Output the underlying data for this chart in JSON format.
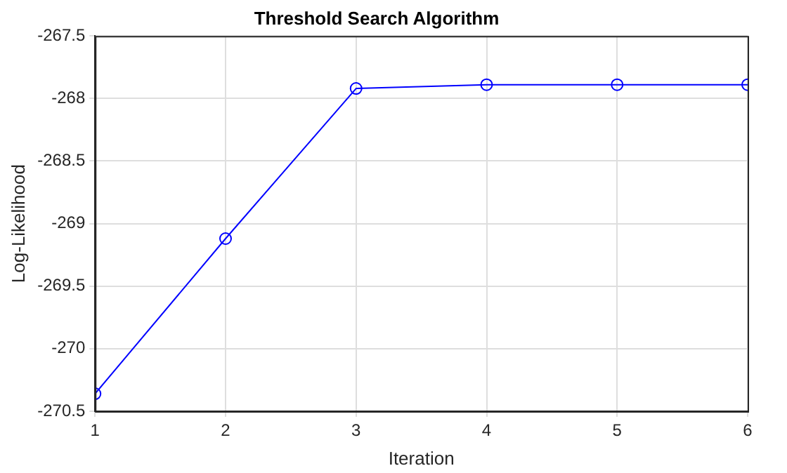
{
  "chart_data": {
    "type": "line",
    "title": "Threshold Search Algorithm",
    "xlabel": "Iteration",
    "ylabel": "Log-Likelihood",
    "x": [
      1,
      2,
      3,
      4,
      5,
      6
    ],
    "series": [
      {
        "color": "#0000ff",
        "values": [
          -270.36,
          -269.12,
          -267.92,
          -267.89,
          -267.89,
          -267.89
        ]
      }
    ],
    "xlim": [
      1,
      6
    ],
    "xticks": [
      1,
      2,
      3,
      4,
      5,
      6
    ],
    "ylim": [
      -270.5,
      -267.5
    ],
    "yticks": [
      -270.5,
      -270,
      -269.5,
      -269,
      -268.5,
      -268,
      -267.5
    ],
    "grid": true,
    "marker": "circle",
    "line_style": "solid",
    "legend": false
  }
}
